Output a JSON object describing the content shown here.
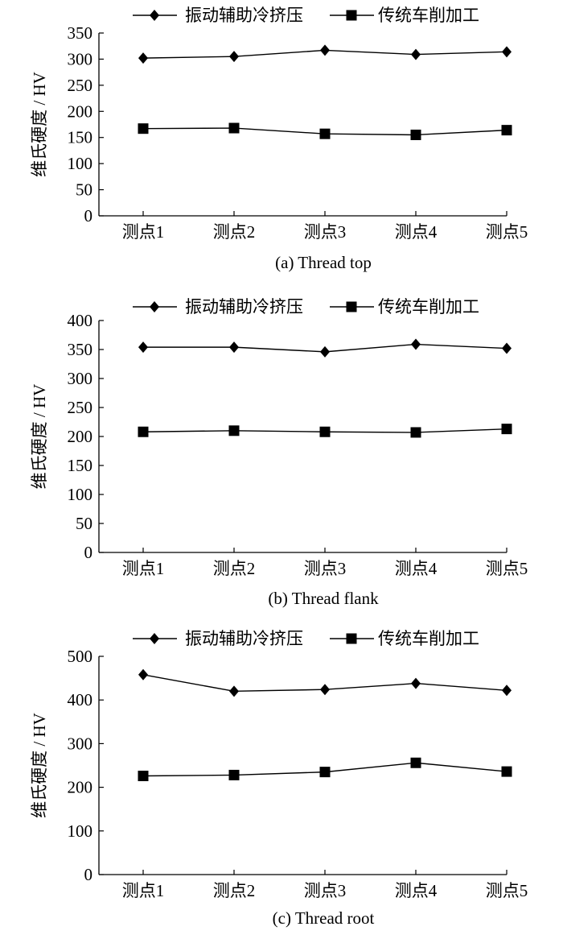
{
  "chart_data": [
    {
      "type": "line",
      "caption": "(a) Thread top",
      "ylabel": "维氏硬度 / HV",
      "categories": [
        "测点1",
        "测点2",
        "测点3",
        "测点4",
        "测点5"
      ],
      "ylim": [
        0,
        350
      ],
      "yticks": [
        0,
        50,
        100,
        150,
        200,
        250,
        300,
        350
      ],
      "legend_position": "top",
      "series": [
        {
          "name": "振动辅助冷挤压",
          "marker": "diamond",
          "values": [
            302,
            305,
            317,
            309,
            314
          ]
        },
        {
          "name": "传统车削加工",
          "marker": "square",
          "values": [
            167,
            168,
            157,
            155,
            164
          ]
        }
      ]
    },
    {
      "type": "line",
      "caption": "(b) Thread flank",
      "ylabel": "维氏硬度 / HV",
      "categories": [
        "测点1",
        "测点2",
        "测点3",
        "测点4",
        "测点5"
      ],
      "ylim": [
        0,
        400
      ],
      "yticks": [
        0,
        50,
        100,
        150,
        200,
        250,
        300,
        350,
        400
      ],
      "legend_position": "top",
      "series": [
        {
          "name": "振动辅助冷挤压",
          "marker": "diamond",
          "values": [
            354,
            354,
            346,
            359,
            352
          ]
        },
        {
          "name": "传统车削加工",
          "marker": "square",
          "values": [
            208,
            210,
            208,
            207,
            213
          ]
        }
      ]
    },
    {
      "type": "line",
      "caption": "(c) Thread root",
      "ylabel": "维氏硬度 / HV",
      "categories": [
        "测点1",
        "测点2",
        "测点3",
        "测点4",
        "测点5"
      ],
      "ylim": [
        0,
        500
      ],
      "yticks": [
        0,
        100,
        200,
        300,
        400,
        500
      ],
      "legend_position": "top",
      "series": [
        {
          "name": "振动辅助冷挤压",
          "marker": "diamond",
          "values": [
            458,
            420,
            424,
            438,
            422
          ]
        },
        {
          "name": "传统车削加工",
          "marker": "square",
          "values": [
            226,
            228,
            235,
            256,
            236
          ]
        }
      ]
    }
  ]
}
